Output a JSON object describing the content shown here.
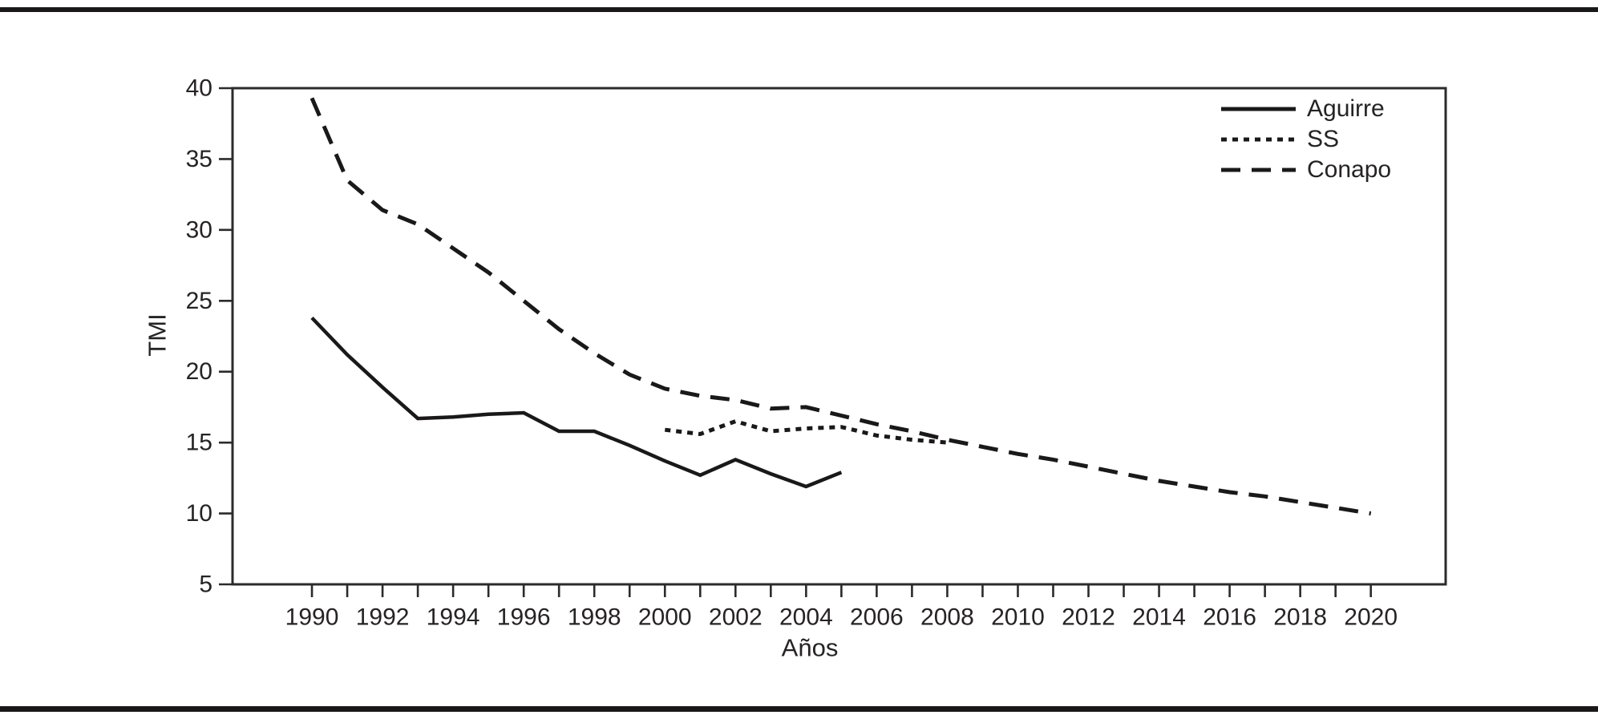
{
  "figure": {
    "background": "#ffffff",
    "rule_color": "#1a1718",
    "axis_color": "#2b2b2b",
    "text_color": "#262324",
    "line_color": "#1b1819"
  },
  "chart_data": {
    "type": "line",
    "title": "",
    "xlabel": "Años",
    "ylabel": "TMI",
    "xlim": [
      1987.75,
      2022.12
    ],
    "ylim": [
      5,
      40
    ],
    "yticks": [
      5,
      10,
      15,
      20,
      25,
      30,
      35,
      40
    ],
    "xticks_labeled": [
      1990,
      1992,
      1994,
      1996,
      1998,
      2000,
      2002,
      2004,
      2006,
      2008,
      2010,
      2012,
      2014,
      2016,
      2018,
      2020
    ],
    "xticks_minor": [
      1990,
      1991,
      1992,
      1993,
      1994,
      1995,
      1996,
      1997,
      1998,
      1999,
      2000,
      2001,
      2002,
      2003,
      2004,
      2005,
      2006,
      2007,
      2008,
      2009,
      2010,
      2011,
      2012,
      2013,
      2014,
      2015,
      2016,
      2017,
      2018,
      2019,
      2020
    ],
    "grid": false,
    "legend_position": "top-right",
    "series": [
      {
        "name": "Aguirre",
        "style": "solid",
        "x": [
          1990,
          1991,
          1992,
          1993,
          1994,
          1995,
          1996,
          1997,
          1998,
          1999,
          2000,
          2001,
          2002,
          2003,
          2004,
          2005
        ],
        "values": [
          23.8,
          21.2,
          18.9,
          16.7,
          16.8,
          17.0,
          17.1,
          15.8,
          15.8,
          14.8,
          13.7,
          12.7,
          13.8,
          12.8,
          11.9,
          12.9
        ]
      },
      {
        "name": "SS",
        "style": "dotted",
        "x": [
          2000,
          2001,
          2002,
          2003,
          2004,
          2005,
          2006,
          2007,
          2008
        ],
        "values": [
          15.9,
          15.6,
          16.5,
          15.8,
          16.0,
          16.1,
          15.5,
          15.2,
          15.0
        ]
      },
      {
        "name": "Conapo",
        "style": "dashed",
        "x": [
          1990,
          1991,
          1992,
          1993,
          1994,
          1995,
          1996,
          1997,
          1998,
          1999,
          2000,
          2001,
          2002,
          2003,
          2004,
          2005,
          2006,
          2007,
          2008,
          2009,
          2010,
          2011,
          2012,
          2013,
          2014,
          2015,
          2016,
          2017,
          2018,
          2019,
          2020
        ],
        "values": [
          39.3,
          33.5,
          31.4,
          30.4,
          28.7,
          27.0,
          25.0,
          23.0,
          21.3,
          19.8,
          18.8,
          18.3,
          18.0,
          17.4,
          17.5,
          16.9,
          16.3,
          15.8,
          15.2,
          14.7,
          14.2,
          13.8,
          13.3,
          12.8,
          12.3,
          11.9,
          11.5,
          11.2,
          10.8,
          10.4,
          10.0
        ]
      }
    ]
  }
}
